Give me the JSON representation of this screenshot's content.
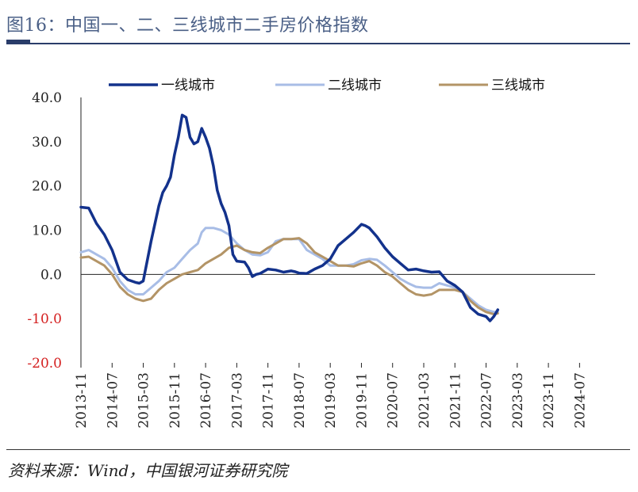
{
  "figure": {
    "title": "图16：中国一、二、三线城市二手房价格指数",
    "source": "资料来源：Wind，中国银河证券研究院"
  },
  "colors": {
    "tier1": "#13328c",
    "tier2": "#a8bde6",
    "tier3": "#b39466",
    "axis": "#222222",
    "negative_label": "#d42020",
    "text": "#222222"
  },
  "chart_data": {
    "type": "line",
    "title": "",
    "xlabel": "",
    "ylabel": "",
    "ylim": [
      -20,
      40
    ],
    "yticks": [
      -20,
      -10,
      0,
      10,
      20,
      30,
      40
    ],
    "ytick_labels": [
      "-20.0",
      "-10.0",
      "0.0",
      "10.0",
      "20.0",
      "30.0",
      "40.0"
    ],
    "x_start": "2013-11",
    "x_end": "2024-11",
    "x_ticks": [
      "2013-11",
      "2014-07",
      "2015-03",
      "2015-11",
      "2016-07",
      "2017-03",
      "2017-11",
      "2018-07",
      "2019-03",
      "2019-11",
      "2020-07",
      "2021-03",
      "2021-11",
      "2022-07",
      "2023-03",
      "2023-11",
      "2024-07"
    ],
    "x_tick_step_months": 8,
    "legend_position": "top",
    "series": [
      {
        "name": "一线城市",
        "points": [
          [
            0,
            15.2
          ],
          [
            2,
            15.0
          ],
          [
            4,
            11.5
          ],
          [
            6,
            9.0
          ],
          [
            8,
            5.5
          ],
          [
            10,
            0.5
          ],
          [
            12,
            -1.2
          ],
          [
            14,
            -1.8
          ],
          [
            15,
            -2.0
          ],
          [
            16,
            -1.5
          ],
          [
            18,
            7.5
          ],
          [
            20,
            15.5
          ],
          [
            21,
            18.5
          ],
          [
            22,
            20.0
          ],
          [
            23,
            22.0
          ],
          [
            24,
            27.0
          ],
          [
            25,
            31.0
          ],
          [
            26,
            36.0
          ],
          [
            27,
            35.5
          ],
          [
            28,
            31.0
          ],
          [
            29,
            29.5
          ],
          [
            30,
            30.0
          ],
          [
            31,
            33.0
          ],
          [
            32,
            31.0
          ],
          [
            33,
            28.5
          ],
          [
            34,
            24.5
          ],
          [
            35,
            19.0
          ],
          [
            36,
            16.0
          ],
          [
            37,
            14.0
          ],
          [
            38,
            11.0
          ],
          [
            39,
            4.5
          ],
          [
            40,
            3.0
          ],
          [
            42,
            2.8
          ],
          [
            43,
            1.5
          ],
          [
            44,
            -0.5
          ],
          [
            45,
            0.0
          ],
          [
            46,
            0.2
          ],
          [
            48,
            1.2
          ],
          [
            50,
            1.0
          ],
          [
            52,
            0.5
          ],
          [
            54,
            0.8
          ],
          [
            55,
            0.6
          ],
          [
            56,
            0.3
          ],
          [
            58,
            0.2
          ],
          [
            60,
            1.2
          ],
          [
            62,
            2.0
          ],
          [
            64,
            3.5
          ],
          [
            66,
            6.5
          ],
          [
            68,
            8.0
          ],
          [
            70,
            9.5
          ],
          [
            72,
            11.3
          ],
          [
            73,
            11.0
          ],
          [
            74,
            10.5
          ],
          [
            76,
            8.5
          ],
          [
            78,
            6.0
          ],
          [
            80,
            4.0
          ],
          [
            82,
            2.5
          ],
          [
            84,
            1.0
          ],
          [
            86,
            1.2
          ],
          [
            88,
            0.8
          ],
          [
            90,
            0.5
          ],
          [
            92,
            0.6
          ],
          [
            94,
            -1.5
          ],
          [
            96,
            -2.5
          ],
          [
            98,
            -4.0
          ],
          [
            100,
            -7.5
          ],
          [
            102,
            -9.0
          ],
          [
            104,
            -9.5
          ],
          [
            105,
            -10.5
          ],
          [
            106,
            -9.5
          ],
          [
            107,
            -8.0
          ]
        ]
      },
      {
        "name": "二线城市",
        "points": [
          [
            0,
            5.0
          ],
          [
            2,
            5.5
          ],
          [
            4,
            4.5
          ],
          [
            6,
            3.5
          ],
          [
            8,
            1.5
          ],
          [
            10,
            -1.5
          ],
          [
            12,
            -3.5
          ],
          [
            14,
            -4.5
          ],
          [
            16,
            -4.5
          ],
          [
            18,
            -3.0
          ],
          [
            20,
            -1.5
          ],
          [
            22,
            0.5
          ],
          [
            24,
            1.5
          ],
          [
            26,
            3.5
          ],
          [
            28,
            5.5
          ],
          [
            30,
            7.0
          ],
          [
            31,
            9.5
          ],
          [
            32,
            10.5
          ],
          [
            34,
            10.5
          ],
          [
            36,
            10.0
          ],
          [
            38,
            9.0
          ],
          [
            40,
            7.0
          ],
          [
            42,
            5.5
          ],
          [
            44,
            4.5
          ],
          [
            46,
            4.3
          ],
          [
            48,
            5.0
          ],
          [
            50,
            7.5
          ],
          [
            52,
            8.0
          ],
          [
            54,
            8.0
          ],
          [
            56,
            8.0
          ],
          [
            58,
            5.5
          ],
          [
            60,
            4.5
          ],
          [
            62,
            3.5
          ],
          [
            64,
            2.0
          ],
          [
            66,
            2.0
          ],
          [
            68,
            2.0
          ],
          [
            70,
            2.3
          ],
          [
            72,
            3.2
          ],
          [
            74,
            3.5
          ],
          [
            76,
            3.3
          ],
          [
            78,
            2.0
          ],
          [
            80,
            0.5
          ],
          [
            82,
            -1.0
          ],
          [
            84,
            -2.0
          ],
          [
            86,
            -2.8
          ],
          [
            88,
            -3.0
          ],
          [
            90,
            -3.0
          ],
          [
            92,
            -2.0
          ],
          [
            94,
            -2.5
          ],
          [
            96,
            -3.0
          ],
          [
            98,
            -4.0
          ],
          [
            100,
            -5.5
          ],
          [
            102,
            -7.0
          ],
          [
            104,
            -8.0
          ],
          [
            106,
            -8.5
          ],
          [
            107,
            -8.5
          ]
        ]
      },
      {
        "name": "三线城市",
        "points": [
          [
            0,
            3.8
          ],
          [
            2,
            4.0
          ],
          [
            4,
            3.0
          ],
          [
            6,
            2.0
          ],
          [
            8,
            0.0
          ],
          [
            10,
            -2.8
          ],
          [
            12,
            -4.5
          ],
          [
            14,
            -5.5
          ],
          [
            16,
            -6.0
          ],
          [
            18,
            -5.5
          ],
          [
            20,
            -3.5
          ],
          [
            22,
            -2.0
          ],
          [
            24,
            -1.0
          ],
          [
            26,
            0.0
          ],
          [
            28,
            0.5
          ],
          [
            30,
            1.0
          ],
          [
            32,
            2.5
          ],
          [
            34,
            3.5
          ],
          [
            36,
            4.5
          ],
          [
            38,
            6.0
          ],
          [
            40,
            6.5
          ],
          [
            42,
            5.5
          ],
          [
            44,
            5.0
          ],
          [
            46,
            4.8
          ],
          [
            48,
            6.0
          ],
          [
            50,
            7.0
          ],
          [
            52,
            8.0
          ],
          [
            54,
            8.0
          ],
          [
            56,
            8.2
          ],
          [
            58,
            7.0
          ],
          [
            60,
            5.0
          ],
          [
            62,
            4.0
          ],
          [
            64,
            3.0
          ],
          [
            66,
            2.0
          ],
          [
            68,
            2.0
          ],
          [
            70,
            1.8
          ],
          [
            72,
            2.5
          ],
          [
            74,
            3.0
          ],
          [
            76,
            2.0
          ],
          [
            78,
            0.5
          ],
          [
            80,
            -0.5
          ],
          [
            82,
            -2.0
          ],
          [
            84,
            -3.5
          ],
          [
            86,
            -4.5
          ],
          [
            88,
            -4.8
          ],
          [
            90,
            -4.5
          ],
          [
            92,
            -3.5
          ],
          [
            94,
            -3.5
          ],
          [
            96,
            -3.5
          ],
          [
            98,
            -4.0
          ],
          [
            100,
            -6.0
          ],
          [
            102,
            -7.5
          ],
          [
            104,
            -8.5
          ],
          [
            106,
            -9.0
          ],
          [
            107,
            -8.8
          ]
        ]
      }
    ]
  }
}
